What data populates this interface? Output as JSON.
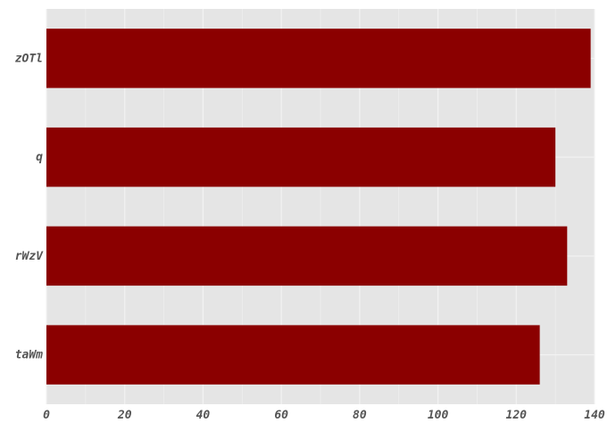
{
  "chart_data": {
    "type": "bar",
    "orientation": "horizontal",
    "categories": [
      "zOTl",
      "q",
      "rWzV",
      "taWm"
    ],
    "values": [
      139,
      130,
      133,
      126
    ],
    "xlim": [
      0,
      140
    ],
    "xticks": [
      "0",
      "20",
      "40",
      "60",
      "80",
      "100",
      "120",
      "140"
    ],
    "grid": true,
    "bar_color": "#8b0000",
    "background_color": "#e5e5e5",
    "grid_color": "#f2f2f2",
    "title": "",
    "xlabel": "",
    "ylabel": ""
  }
}
